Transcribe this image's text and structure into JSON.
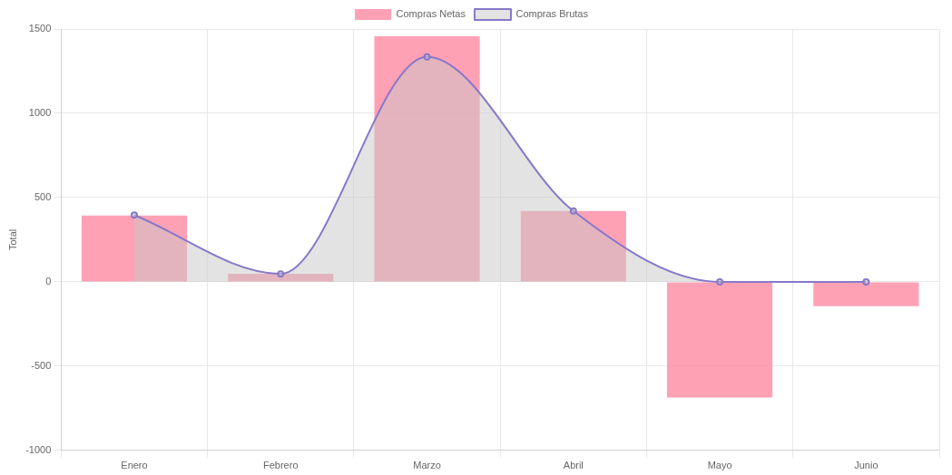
{
  "chart_data": {
    "type": "bar",
    "ylabel": "Total",
    "categories": [
      "Enero",
      "Febrero",
      "Marzo",
      "Abril",
      "Mayo",
      "Junio"
    ],
    "series": [
      {
        "name": "Compras Netas",
        "color": "#ff8aa2",
        "values": [
          394,
          48,
          1457,
          420,
          -686,
          -144
        ]
      },
      {
        "name": "Compras Brutas",
        "type": "area",
        "color": "#8878c8",
        "values": [
          396,
          47,
          1335,
          420,
          0,
          0
        ]
      }
    ],
    "ylim": [
      -1000,
      1500
    ],
    "yticks": [
      -1000,
      -500,
      0,
      500,
      1000,
      1500
    ],
    "grid": true,
    "legend": "top",
    "marker": "circle"
  }
}
